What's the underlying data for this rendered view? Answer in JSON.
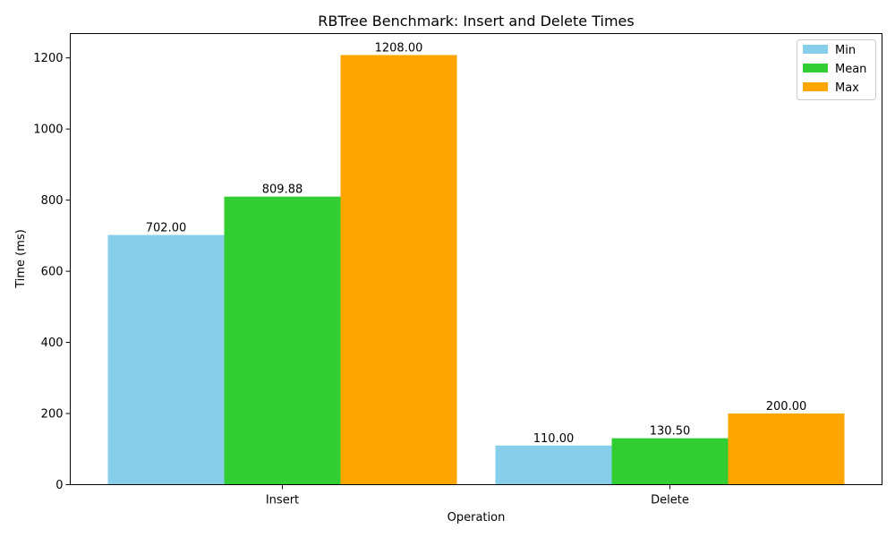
{
  "chart_data": {
    "type": "bar",
    "title": "RBTree Benchmark: Insert and Delete Times",
    "xlabel": "Operation",
    "ylabel": "Time (ms)",
    "categories": [
      "Insert",
      "Delete"
    ],
    "series": [
      {
        "name": "Min",
        "color": "#87ceeb",
        "values": [
          702.0,
          110.0
        ],
        "labels": [
          "702.00",
          "110.00"
        ]
      },
      {
        "name": "Mean",
        "color": "#32cd32",
        "values": [
          809.88,
          130.5
        ],
        "labels": [
          "809.88",
          "130.50"
        ]
      },
      {
        "name": "Max",
        "color": "#ffa500",
        "values": [
          1208.0,
          200.0
        ],
        "labels": [
          "1208.00",
          "200.00"
        ]
      }
    ],
    "ylim": [
      0,
      1268.4
    ],
    "yticks": [
      0,
      200,
      400,
      600,
      800,
      1000,
      1200
    ],
    "grid": false,
    "legend_position": "top-right"
  }
}
